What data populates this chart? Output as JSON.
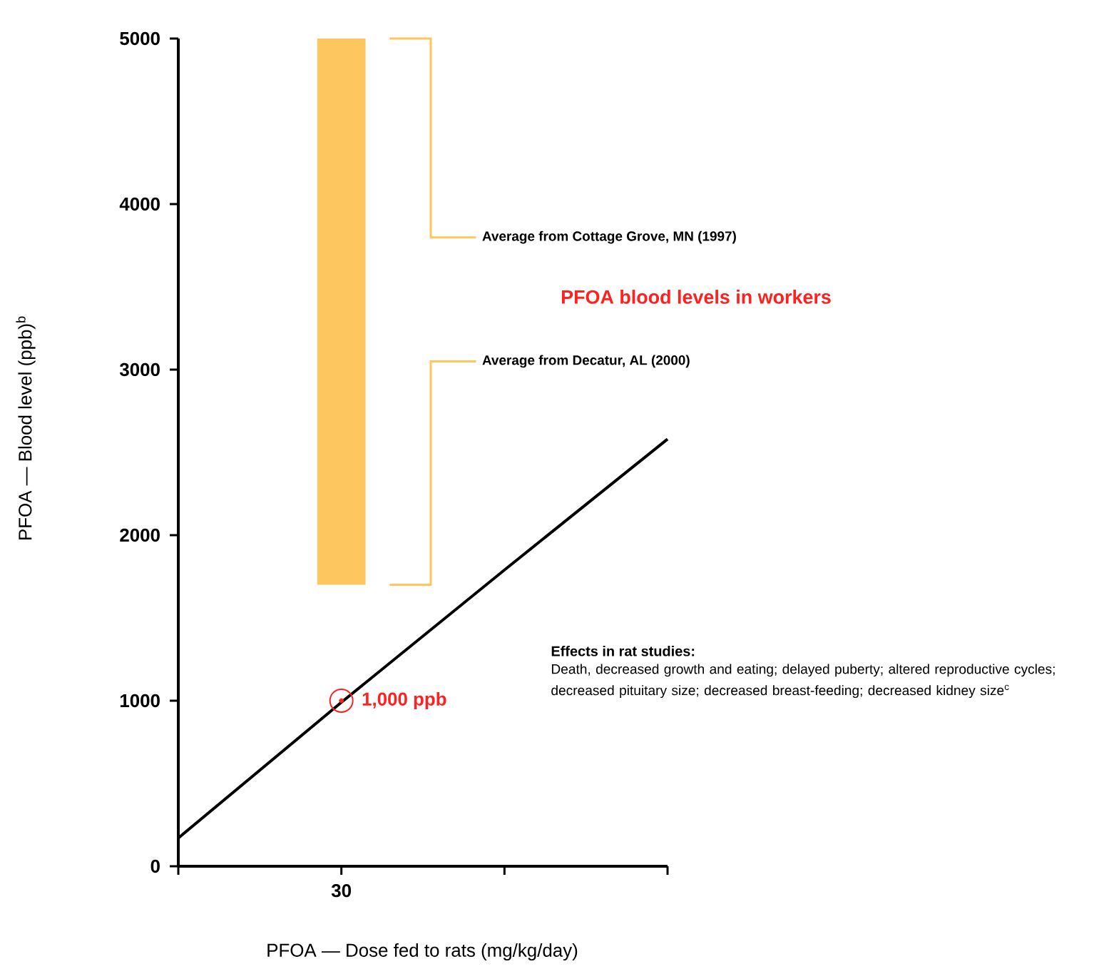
{
  "chart_data": {
    "type": "line",
    "xlabel": "PFOA — Dose fed to rats (mg/kg/day)",
    "ylabel": "PFOA — Blood level (ppb)$^{b}$",
    "categories": [
      null,
      "30",
      null,
      null
    ],
    "ylim": [
      0,
      5000
    ],
    "yticks": [
      0,
      1000,
      2000,
      3000,
      4000,
      5000
    ],
    "series": [
      {
        "color": "#000000",
        "values": [
          170,
          990,
          1790,
          2580
        ]
      },
      {
        "type": "bar",
        "color": "#fdc65e",
        "base": [
          null,
          1700,
          null,
          null
        ],
        "values": [
          null,
          3300,
          null,
          null
        ]
      },
      {
        "type": "scatter",
        "color": "#ff2020",
        "values": [
          null,
          1000,
          null,
          null
        ],
        "marker": "circle"
      }
    ],
    "annotations": [
      "Average from Cottage Grove, MN (1997)",
      "Average from Decatur, AL (2000)",
      "PFOA blood levels in workers",
      {
        "text": "1,000 ppb",
        "x": "30",
        "y": 1000
      },
      "Effects in rat studies:",
      "Death, decreased growth and eating; delayed puberty; altered reproductive cycles; decreased pituitary size; decreased breast-feeding; decreased kidney size$^{c}$"
    ]
  }
}
